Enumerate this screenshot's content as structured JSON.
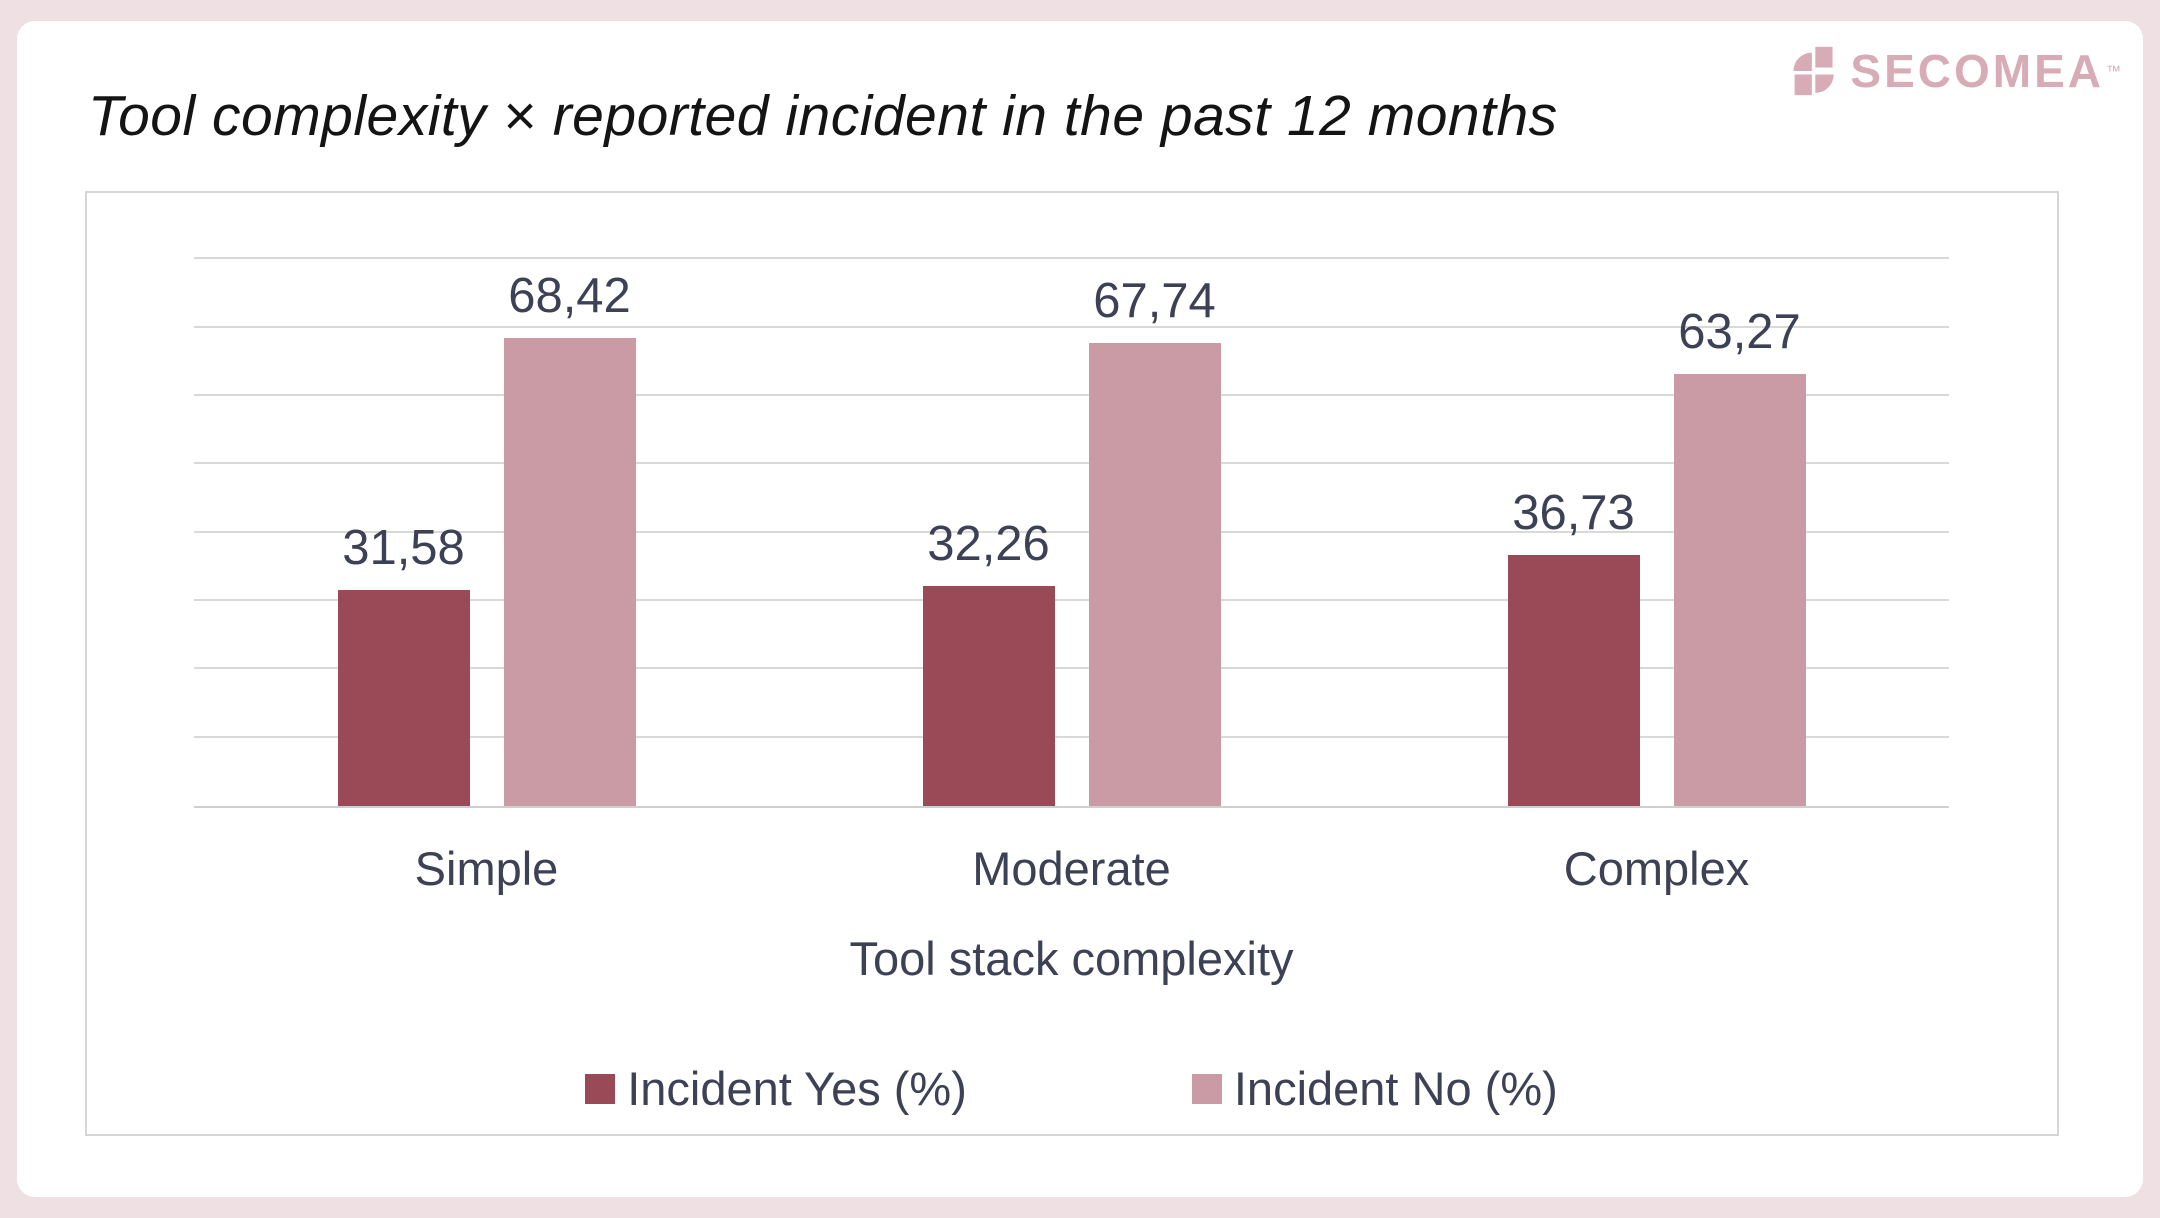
{
  "brand": {
    "logo_text": "SECOMEA",
    "trademark_mark": "™"
  },
  "title": "Tool complexity × reported incident in the past 12 months",
  "chart_data": {
    "type": "bar",
    "title": "Tool complexity × reported incident in the past 12 months",
    "categories": [
      "Simple",
      "Moderate",
      "Complex"
    ],
    "series": [
      {
        "name": "Incident Yes (%)",
        "color": "#9a4a56",
        "values": [
          31.58,
          32.26,
          36.73
        ],
        "labels": [
          "31,58",
          "32,26",
          "36,73"
        ]
      },
      {
        "name": "Incident No (%)",
        "color": "#cb9ba5",
        "values": [
          68.42,
          67.74,
          63.27
        ],
        "labels": [
          "68,42",
          "67,74",
          "63,27"
        ]
      }
    ],
    "xlabel": "Tool stack complexity",
    "ylabel": "",
    "ylim": [
      0,
      90
    ],
    "gridline_step": 10,
    "grid": true,
    "y_axis_labels_visible": false,
    "legend_position": "bottom",
    "value_format": "comma-decimal"
  },
  "colors": {
    "page_bg": "#efe0e3",
    "card_bg": "#ffffff",
    "bar_yes": "#9a4a56",
    "bar_no": "#cb9ba5",
    "text_dark": "#141414",
    "text_slate": "#3d4156",
    "gridline": "#d9d9d9",
    "frame_border": "#d6d6d6",
    "logo": "#d8acb6"
  }
}
